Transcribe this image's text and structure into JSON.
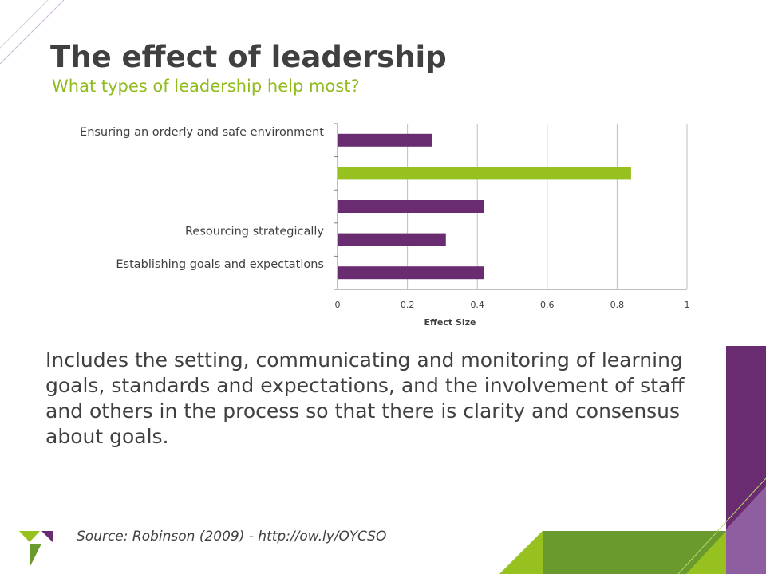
{
  "slide": {
    "title": "The effect of leadership",
    "subtitle": "What types of leadership help most?",
    "body": "Includes the setting, communicating and monitoring of learning goals, standards and expectations, and the involvement of staff and others in the process so that there is clarity and consensus about goals.",
    "source": "Source: Robinson (2009) - http://ow.ly/OYCSO"
  },
  "colors": {
    "purple": "#6a2c70",
    "green": "#97c11f",
    "text": "#404040",
    "grid": "#bfbfbf"
  },
  "chart_data": {
    "type": "bar",
    "orientation": "horizontal",
    "categories": [
      "Ensuring an orderly and safe environment",
      "",
      "",
      "Resourcing strategically",
      "Establishing goals and expectations"
    ],
    "values": [
      0.27,
      0.84,
      0.42,
      0.31,
      0.42
    ],
    "highlight_index": 1,
    "xlabel": "Effect Size",
    "xlim": [
      0,
      1
    ],
    "xticks": [
      0,
      0.2,
      0.4,
      0.6,
      0.8,
      1
    ],
    "xtick_labels": [
      "0",
      "0.2",
      "0.4",
      "0.6",
      "0.8",
      "1"
    ],
    "grid": true,
    "legend": "none"
  }
}
